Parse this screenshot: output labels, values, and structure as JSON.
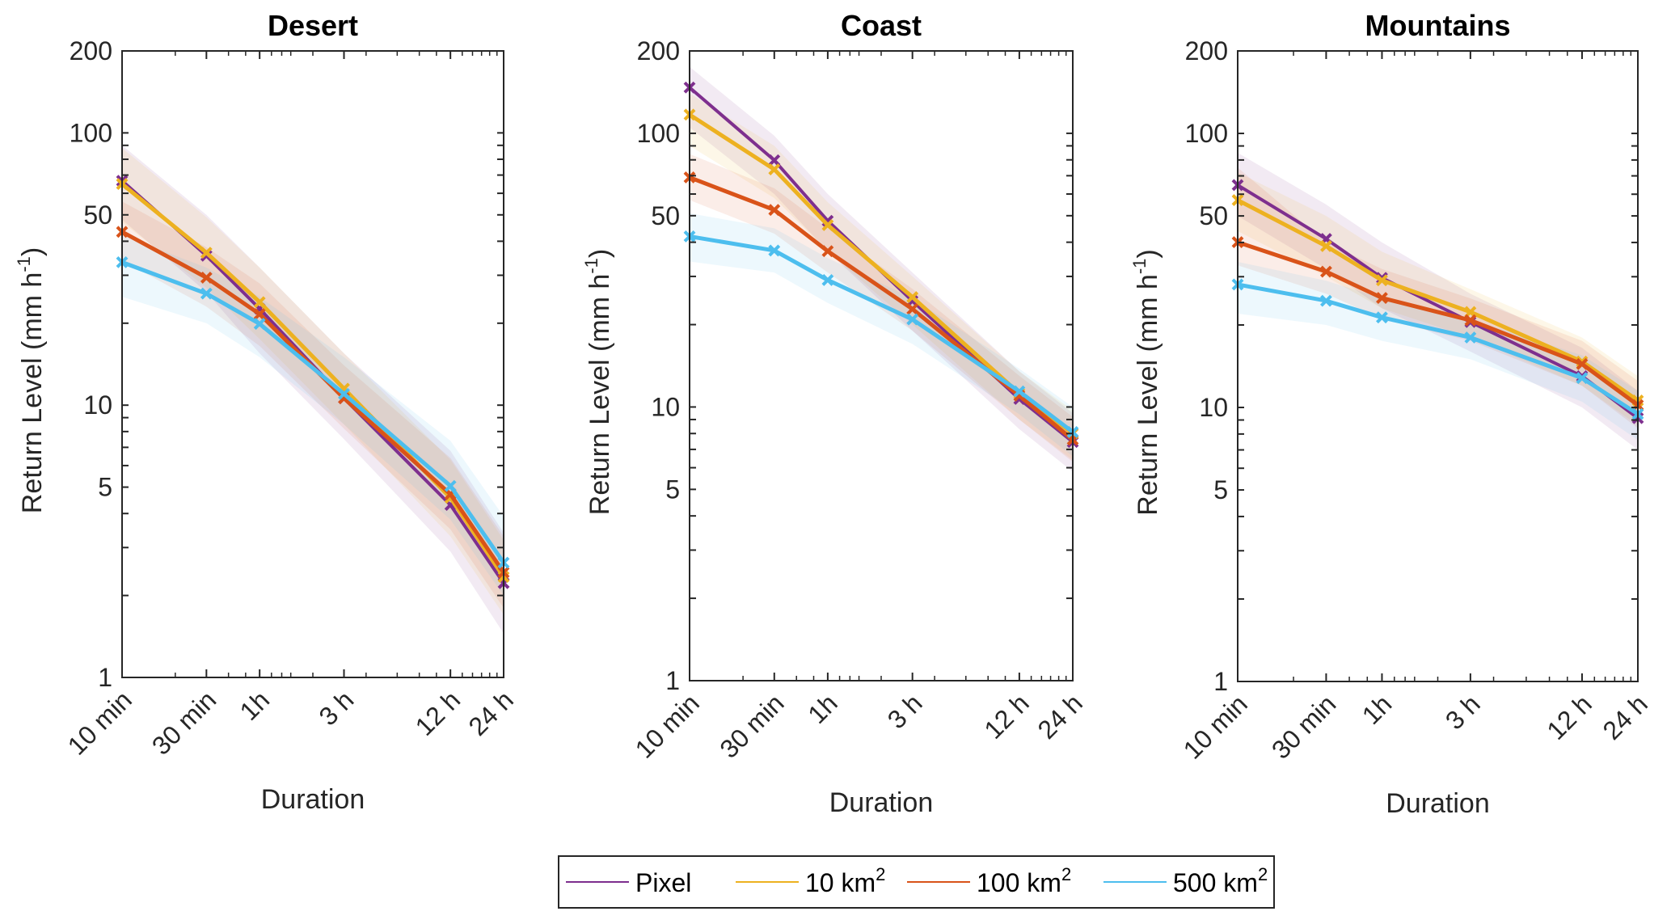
{
  "chart_data": {
    "type": "line",
    "title": "",
    "xscale": "log",
    "yscale": "log",
    "x_minutes": [
      10,
      30,
      60,
      180,
      720,
      1440
    ],
    "categories": [
      "10 min",
      "30 min",
      "1h",
      "3 h",
      "12 h",
      "24 h"
    ],
    "ylim": [
      1,
      200
    ],
    "yticks": [
      1,
      5,
      10,
      50,
      100,
      200
    ],
    "ytick_labels": [
      "1",
      "5",
      "10",
      "50",
      "100",
      "200"
    ],
    "xlabel": "Duration",
    "ylabel": "Return Level (mm h",
    "ylabel_superscript": "-1",
    "ylabel_suffix": ")",
    "grid": false,
    "legend_placement": "bottom-center",
    "series_styles": [
      {
        "name": "Pixel",
        "color": "#7E2F8E",
        "marker": "x"
      },
      {
        "name": "10 km",
        "sup": "2",
        "color": "#EDB120",
        "marker": "x"
      },
      {
        "name": "100 km",
        "sup": "2",
        "color": "#D95319",
        "marker": "x"
      },
      {
        "name": "500 km",
        "sup": "2",
        "color": "#4DBEEE",
        "marker": "x"
      }
    ],
    "panels": [
      {
        "title": "Desert",
        "series": [
          {
            "name": "Pixel",
            "values": [
              66.7,
              35.4,
              22.6,
              10.6,
              4.3,
              2.22
            ],
            "lower": [
              48,
              26,
              15.5,
              7.5,
              2.9,
              1.45
            ],
            "upper": [
              90,
              50,
              32,
              15.5,
              6.8,
              3.4
            ]
          },
          {
            "name": "10 km2",
            "values": [
              64.9,
              36.3,
              23.9,
              11.5,
              4.57,
              2.34
            ],
            "lower": [
              47,
              27,
              17.5,
              8.5,
              3.3,
              1.7
            ],
            "upper": [
              88,
              49,
              32,
              15.5,
              6.3,
              3.2
            ]
          },
          {
            "name": "100 km2",
            "values": [
              43.3,
              29.4,
              21.6,
              10.6,
              4.71,
              2.43
            ],
            "lower": [
              34,
              23,
              16.5,
              8.2,
              3.5,
              1.8
            ],
            "upper": [
              56,
              38,
              28,
              14,
              6.4,
              3.3
            ]
          },
          {
            "name": "500 km2",
            "values": [
              33.5,
              25.7,
              19.9,
              11.0,
              5.05,
              2.64
            ],
            "lower": [
              25,
              20,
              15,
              8.5,
              3.8,
              2.0
            ],
            "upper": [
              42,
              32,
              25,
              15,
              7.4,
              3.9
            ]
          }
        ]
      },
      {
        "title": "Coast",
        "series": [
          {
            "name": "Pixel",
            "values": [
              147,
              79.7,
              47.9,
              24.4,
              10.7,
              7.45
            ],
            "lower": [
              105,
              60,
              37,
              19,
              8.3,
              5.8
            ],
            "upper": [
              175,
              98,
              60,
              31,
              13.5,
              9.5
            ]
          },
          {
            "name": "10 km2",
            "values": [
              117,
              73.8,
              46.2,
              25.2,
              11.2,
              8.0
            ],
            "lower": [
              90,
              58,
              37,
              20,
              9,
              6.4
            ],
            "upper": [
              140,
              90,
              56,
              30,
              13.5,
              9.7
            ]
          },
          {
            "name": "100 km2",
            "values": [
              69,
              52.5,
              37.1,
              22.8,
              11.0,
              7.6
            ],
            "lower": [
              57,
              43,
              31,
              19,
              9,
              6.3
            ],
            "upper": [
              84,
              63,
              45,
              27,
              13,
              9.2
            ]
          },
          {
            "name": "500 km2",
            "values": [
              42,
              37.3,
              29.1,
              20.9,
              11.4,
              8.1
            ],
            "lower": [
              34,
              31,
              24,
              17,
              9.4,
              6.6
            ],
            "upper": [
              51,
              45,
              35,
              25,
              13.8,
              10
            ]
          }
        ]
      },
      {
        "title": "Mountains",
        "series": [
          {
            "name": "Pixel",
            "values": [
              64.8,
              41.2,
              29.7,
              20.5,
              13.0,
              9.14
            ],
            "lower": [
              50,
              32,
              23,
              16,
              10,
              7
            ],
            "upper": [
              85,
              55,
              40,
              26,
              16.5,
              11.5
            ]
          },
          {
            "name": "10 km2",
            "values": [
              57.1,
              38.8,
              29.1,
              22.3,
              14.7,
              10.6
            ],
            "lower": [
              44,
              30,
              23,
              18,
              12,
              8.6
            ],
            "upper": [
              72,
              50,
              37,
              27,
              18,
              13
            ]
          },
          {
            "name": "100 km2",
            "values": [
              40.1,
              31.3,
              25.1,
              20.8,
              14.4,
              10.2
            ],
            "lower": [
              33,
              26,
              21,
              17.5,
              12,
              8.4
            ],
            "upper": [
              75,
              40,
              32,
              25,
              17.5,
              12.5
            ]
          },
          {
            "name": "500 km2",
            "values": [
              28.1,
              24.5,
              21.3,
              18.0,
              12.8,
              9.46
            ],
            "lower": [
              22,
              20,
              17.5,
              15,
              10.5,
              7.6
            ],
            "upper": [
              34,
              29,
              25,
              21,
              15.5,
              11.5
            ]
          }
        ]
      }
    ]
  },
  "legend": {
    "items": [
      {
        "label": "Pixel",
        "sup": ""
      },
      {
        "label": "10 km",
        "sup": "2"
      },
      {
        "label": "100 km",
        "sup": "2"
      },
      {
        "label": "500 km",
        "sup": "2"
      }
    ]
  }
}
